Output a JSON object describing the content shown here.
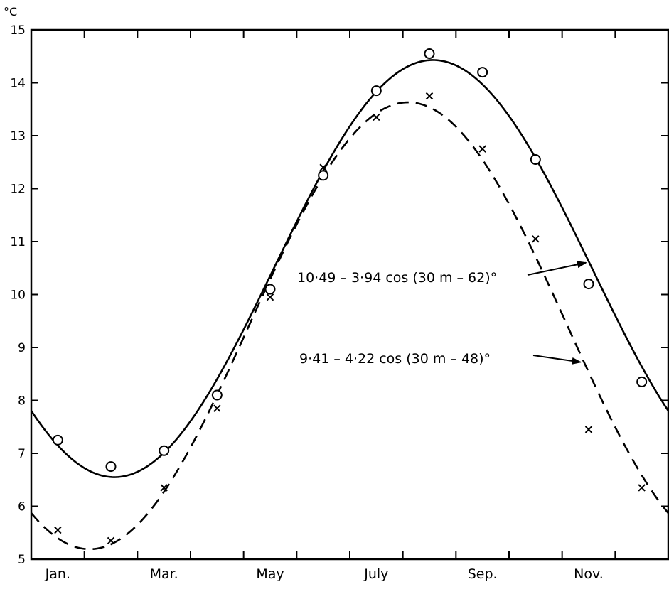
{
  "chart_data": {
    "type": "line",
    "title": "",
    "xlabel": "",
    "ylabel": "°C",
    "ylim": [
      5,
      15
    ],
    "yticks": [
      5,
      6,
      7,
      8,
      9,
      10,
      11,
      12,
      13,
      14,
      15
    ],
    "ytick_labels": [
      "5",
      "6",
      "7",
      "8",
      "9",
      "10",
      "11",
      "12",
      "13",
      "14",
      "15"
    ],
    "xlim": [
      0.5,
      12.5
    ],
    "x_label_positions": [
      1,
      3,
      5,
      7,
      9,
      11
    ],
    "x_labels": [
      "Jan.",
      "Mar.",
      "May",
      "July",
      "Sep.",
      "Nov."
    ],
    "grid": false,
    "legend": "none",
    "series": [
      {
        "style": "solid",
        "marker": "circle",
        "observed": {
          "x": [
            1,
            2,
            3,
            4,
            5,
            6,
            7,
            8,
            9,
            10,
            11,
            12
          ],
          "y": [
            7.25,
            6.75,
            7.05,
            8.1,
            10.1,
            12.25,
            13.85,
            14.55,
            14.2,
            12.55,
            10.2,
            8.35
          ]
        },
        "fit": {
          "a": 10.49,
          "b": 3.94,
          "phase": 62
        }
      },
      {
        "style": "dashed",
        "marker": "cross",
        "observed": {
          "x": [
            1,
            2,
            3,
            4,
            5,
            6,
            7,
            8,
            9,
            10,
            11,
            12
          ],
          "y": [
            5.55,
            5.35,
            6.35,
            7.85,
            9.95,
            12.4,
            13.35,
            13.75,
            12.75,
            11.05,
            7.45,
            6.35
          ]
        },
        "fit": {
          "a": 9.41,
          "b": 4.22,
          "phase": 48
        }
      }
    ],
    "annotations": [
      {
        "text": "10·49 – 3·94 cos (30 m – 62)°",
        "series": 0,
        "arrow_x": 11.0
      },
      {
        "text": "9·41 – 4·22 cos (30 m – 48)°",
        "series": 1,
        "arrow_x": 10.9
      }
    ]
  }
}
